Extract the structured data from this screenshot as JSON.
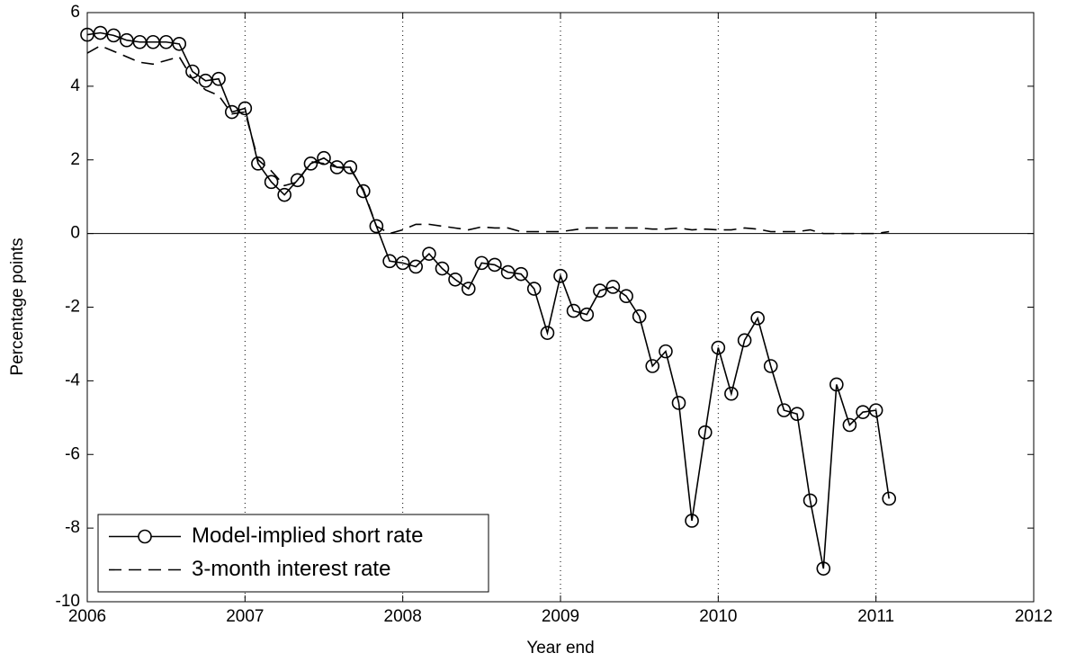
{
  "chart_data": {
    "type": "line",
    "xlabel": "Year end",
    "ylabel": "Percentage points",
    "x": [
      2006,
      2006.083,
      2006.167,
      2006.25,
      2006.333,
      2006.417,
      2006.5,
      2006.583,
      2006.667,
      2006.75,
      2006.833,
      2006.917,
      2007,
      2007.083,
      2007.167,
      2007.25,
      2007.333,
      2007.417,
      2007.5,
      2007.583,
      2007.667,
      2007.75,
      2007.833,
      2007.917,
      2008,
      2008.083,
      2008.167,
      2008.25,
      2008.333,
      2008.417,
      2008.5,
      2008.583,
      2008.667,
      2008.75,
      2008.833,
      2008.917,
      2009,
      2009.083,
      2009.167,
      2009.25,
      2009.333,
      2009.417,
      2009.5,
      2009.583,
      2009.667,
      2009.75,
      2009.833,
      2009.917,
      2010,
      2010.083,
      2010.167,
      2010.25,
      2010.333,
      2010.417,
      2010.5,
      2010.583,
      2010.667,
      2010.75,
      2010.833,
      2010.917,
      2011,
      2011.083
    ],
    "series": [
      {
        "name": "Model-implied short rate",
        "color": "#000000",
        "dash": "solid",
        "marker": "circle",
        "values": [
          5.4,
          5.45,
          5.38,
          5.25,
          5.2,
          5.2,
          5.2,
          5.15,
          4.4,
          4.15,
          4.2,
          3.3,
          3.4,
          1.9,
          1.4,
          1.05,
          1.45,
          1.9,
          2.05,
          1.8,
          1.8,
          1.15,
          0.2,
          -0.75,
          -0.8,
          -0.9,
          -0.55,
          -0.95,
          -1.25,
          -1.5,
          -0.8,
          -0.85,
          -1.05,
          -1.1,
          -1.5,
          -2.7,
          -1.15,
          -2.1,
          -2.2,
          -1.55,
          -1.45,
          -1.7,
          -2.25,
          -3.6,
          -3.2,
          -4.6,
          -7.8,
          -5.4,
          -3.1,
          -4.35,
          -2.9,
          -2.3,
          -3.6,
          -4.8,
          -4.9,
          -7.25,
          -9.1,
          -4.1,
          -5.2,
          -4.85,
          -4.8,
          -7.2
        ]
      },
      {
        "name": "3-month interest rate",
        "color": "#000000",
        "dash": "dashed",
        "marker": "none",
        "values": [
          4.9,
          5.1,
          4.95,
          4.8,
          4.65,
          4.6,
          4.7,
          4.8,
          4.2,
          3.9,
          3.75,
          3.25,
          3.3,
          2.0,
          1.7,
          1.3,
          1.4,
          1.95,
          1.9,
          1.8,
          1.75,
          1.2,
          0.2,
          0.0,
          0.1,
          0.25,
          0.25,
          0.2,
          0.15,
          0.1,
          0.18,
          0.15,
          0.15,
          0.05,
          0.05,
          0.05,
          0.05,
          0.1,
          0.15,
          0.15,
          0.15,
          0.15,
          0.15,
          0.12,
          0.12,
          0.15,
          0.1,
          0.12,
          0.1,
          0.1,
          0.15,
          0.12,
          0.05,
          0.05,
          0.05,
          0.1,
          0.0,
          0.0,
          0.0,
          0.0,
          0.0,
          0.05
        ]
      }
    ],
    "xlim": [
      2006,
      2012
    ],
    "xticks": [
      2006,
      2007,
      2008,
      2009,
      2010,
      2011,
      2012
    ],
    "ylim": [
      -10,
      6
    ],
    "yticks": [
      -10,
      -8,
      -6,
      -4,
      -2,
      0,
      2,
      4,
      6
    ],
    "grid_x": true,
    "legend": "lower left"
  }
}
